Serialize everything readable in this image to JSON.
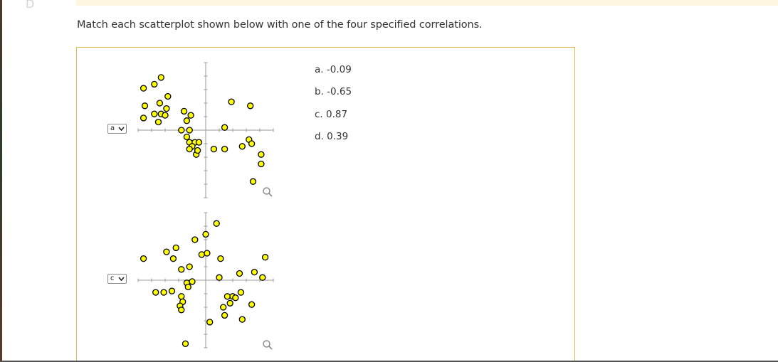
{
  "header": {
    "corner_glyph": "D",
    "instruction": "Match each scatterplot shown below with one of the four specified correlations."
  },
  "options": [
    {
      "label": "a. -0.09"
    },
    {
      "label": "b. -0.65"
    },
    {
      "label": "c. 0.87"
    },
    {
      "label": "d. 0.39"
    }
  ],
  "dropdowns": [
    {
      "selected": "a",
      "icon": "chevron-down-icon"
    },
    {
      "selected": "c",
      "icon": "chevron-down-icon"
    }
  ],
  "colors": {
    "point_fill": "#ffff00",
    "point_stroke": "#000000",
    "axis": "#9a9a9a",
    "box_border": "#e3b94b"
  },
  "chart_data": [
    {
      "type": "scatter",
      "grid": false,
      "xlim": [
        -5,
        5
      ],
      "ylim": [
        -5,
        5
      ],
      "points": [
        [
          -3.3,
          3.9
        ],
        [
          -3.8,
          3.4
        ],
        [
          -4.6,
          3.1
        ],
        [
          -2.8,
          2.5
        ],
        [
          -3.4,
          2.0
        ],
        [
          -4.5,
          1.8
        ],
        [
          -4.6,
          0.9
        ],
        [
          -2.9,
          1.6
        ],
        [
          -3.3,
          1.2
        ],
        [
          -3.0,
          1.1
        ],
        [
          -3.8,
          1.2
        ],
        [
          -3.5,
          0.6
        ],
        [
          -1.6,
          1.4
        ],
        [
          -1.4,
          0.7
        ],
        [
          -1.1,
          1.1
        ],
        [
          -1.2,
          0.0
        ],
        [
          -1.8,
          0.0
        ],
        [
          -1.4,
          -0.5
        ],
        [
          -1.2,
          -0.9
        ],
        [
          -0.8,
          -0.9
        ],
        [
          -1.0,
          -1.2
        ],
        [
          -1.2,
          -1.4
        ],
        [
          -0.5,
          -0.9
        ],
        [
          -0.7,
          -1.8
        ],
        [
          -0.6,
          -1.5
        ],
        [
          0.6,
          -1.4
        ],
        [
          1.4,
          -1.4
        ],
        [
          1.9,
          2.1
        ],
        [
          1.4,
          0.2
        ],
        [
          2.7,
          -1.2
        ],
        [
          3.2,
          -0.7
        ],
        [
          3.4,
          -1.0
        ],
        [
          3.3,
          1.8
        ],
        [
          4.1,
          -1.8
        ],
        [
          4.1,
          -2.5
        ],
        [
          3.5,
          -3.8
        ]
      ]
    },
    {
      "type": "scatter",
      "grid": false,
      "xlim": [
        -5,
        5
      ],
      "ylim": [
        -5,
        5
      ],
      "points": [
        [
          0.8,
          4.2
        ],
        [
          0.0,
          3.4
        ],
        [
          -0.8,
          3.0
        ],
        [
          -2.2,
          2.4
        ],
        [
          -2.9,
          2.1
        ],
        [
          -2.4,
          1.6
        ],
        [
          -4.6,
          1.6
        ],
        [
          -1.8,
          0.8
        ],
        [
          -1.2,
          1.0
        ],
        [
          -1.4,
          -0.2
        ],
        [
          -1.3,
          -0.5
        ],
        [
          -1.0,
          -0.1
        ],
        [
          -3.7,
          -0.9
        ],
        [
          -3.1,
          -0.9
        ],
        [
          -2.5,
          -0.8
        ],
        [
          -1.8,
          -1.2
        ],
        [
          -1.7,
          -1.6
        ],
        [
          -1.9,
          -1.9
        ],
        [
          -1.8,
          -2.2
        ],
        [
          -0.3,
          1.9
        ],
        [
          0.1,
          2.0
        ],
        [
          1.0,
          0.2
        ],
        [
          1.1,
          1.6
        ],
        [
          1.6,
          -1.2
        ],
        [
          2.0,
          -1.2
        ],
        [
          2.2,
          -1.3
        ],
        [
          1.8,
          -1.7
        ],
        [
          1.3,
          -2.0
        ],
        [
          1.4,
          -2.6
        ],
        [
          0.3,
          -3.1
        ],
        [
          2.6,
          -0.9
        ],
        [
          2.5,
          0.5
        ],
        [
          3.6,
          0.6
        ],
        [
          4.2,
          0.2
        ],
        [
          3.4,
          -1.8
        ],
        [
          2.7,
          -2.9
        ],
        [
          -1.5,
          -4.7
        ],
        [
          4.4,
          1.7
        ]
      ]
    }
  ]
}
